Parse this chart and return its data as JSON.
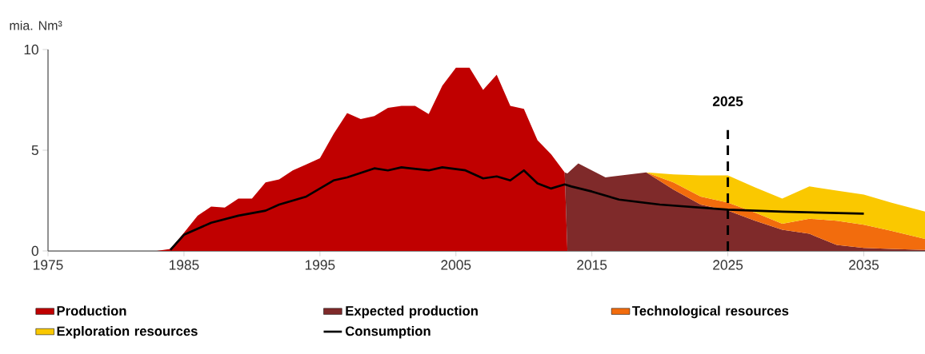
{
  "chart_data": {
    "type": "area",
    "ylabel": "mia. Nm³",
    "stacked": true,
    "legend": "bottom",
    "xlim": [
      1975,
      2039.5
    ],
    "ylim": [
      0,
      10
    ],
    "xticks": [
      1975,
      1985,
      1995,
      2005,
      2015,
      2025,
      2035
    ],
    "yticks": [
      0,
      5,
      10
    ],
    "x": [
      1983,
      1984,
      1985,
      1986,
      1987,
      1988,
      1989,
      1990,
      1991,
      1992,
      1993,
      1994,
      1995,
      1996,
      1997,
      1998,
      1999,
      2000,
      2001,
      2002,
      2003,
      2004,
      2005,
      2006,
      2007,
      2008,
      2009,
      2010,
      2011,
      2012,
      2013,
      2013.2,
      2014,
      2016,
      2019,
      2021,
      2023,
      2025,
      2027,
      2029,
      2031,
      2033,
      2035,
      2037,
      2039.5
    ],
    "series": [
      {
        "name": "Production",
        "color": "#c00000",
        "values": [
          0,
          0.1,
          0.9,
          1.75,
          2.2,
          2.15,
          2.6,
          2.6,
          3.4,
          3.55,
          4.0,
          4.3,
          4.6,
          5.8,
          6.85,
          6.55,
          6.7,
          7.1,
          7.2,
          7.2,
          6.8,
          8.2,
          9.1,
          9.1,
          8.0,
          8.75,
          7.2,
          7.05,
          5.5,
          4.8,
          3.9,
          0,
          null,
          null,
          null,
          null,
          null,
          null,
          null,
          null,
          null,
          null,
          null,
          null,
          null
        ]
      },
      {
        "name": "Expected production",
        "color": "#7f2a2a",
        "values": [
          null,
          null,
          null,
          null,
          null,
          null,
          null,
          null,
          null,
          null,
          null,
          null,
          null,
          null,
          null,
          null,
          null,
          null,
          null,
          null,
          null,
          null,
          null,
          null,
          null,
          null,
          null,
          null,
          null,
          null,
          0,
          3.85,
          4.35,
          3.65,
          3.9,
          3.05,
          2.3,
          2.0,
          1.5,
          1.05,
          0.85,
          0.3,
          0.15,
          0.1,
          0.05
        ]
      },
      {
        "name": "Technological resources",
        "color": "#f26c0d",
        "values": [
          null,
          null,
          null,
          null,
          null,
          null,
          null,
          null,
          null,
          null,
          null,
          null,
          null,
          null,
          null,
          null,
          null,
          null,
          null,
          null,
          null,
          null,
          null,
          null,
          null,
          null,
          null,
          null,
          null,
          null,
          null,
          null,
          null,
          null,
          0,
          0.35,
          0.4,
          0.4,
          0.4,
          0.3,
          0.75,
          1.2,
          1.15,
          0.9,
          0.55
        ]
      },
      {
        "name": "Exploration resources",
        "color": "#fac800",
        "values": [
          null,
          null,
          null,
          null,
          null,
          null,
          null,
          null,
          null,
          null,
          null,
          null,
          null,
          null,
          null,
          null,
          null,
          null,
          null,
          null,
          null,
          null,
          null,
          null,
          null,
          null,
          null,
          null,
          null,
          null,
          null,
          null,
          null,
          null,
          0,
          0.4,
          1.05,
          1.35,
          1.25,
          1.25,
          1.6,
          1.5,
          1.5,
          1.4,
          1.35
        ]
      },
      {
        "name": "Consumption",
        "type": "line",
        "color": "#000000",
        "x": [
          1984,
          1985,
          1987,
          1989,
          1991,
          1992,
          1994,
          1996,
          1997,
          1999,
          2000,
          2001,
          2003,
          2004,
          2005.7,
          2007,
          2008,
          2009,
          2010,
          2011,
          2012,
          2013,
          2013.5,
          2015,
          2017,
          2020,
          2025,
          2029,
          2035
        ],
        "values": [
          0.05,
          0.8,
          1.4,
          1.75,
          2.0,
          2.3,
          2.7,
          3.5,
          3.65,
          4.1,
          4.0,
          4.15,
          4.0,
          4.15,
          4.0,
          3.6,
          3.7,
          3.5,
          4.0,
          3.35,
          3.1,
          3.3,
          3.2,
          2.95,
          2.55,
          2.3,
          2.05,
          1.95,
          1.85
        ]
      }
    ],
    "ref_lines": [
      {
        "axis": "x",
        "value": 2025,
        "label": "2025",
        "color": "#000000",
        "line_style": "dashed"
      }
    ]
  }
}
